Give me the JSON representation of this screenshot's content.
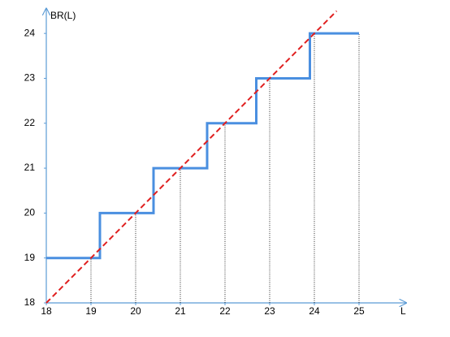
{
  "chart_data": {
    "type": "line",
    "x_label": "L",
    "y_label": "BR(L)",
    "xlim": [
      18,
      26
    ],
    "ylim": [
      18,
      24.5
    ],
    "xticks": [
      18,
      19,
      20,
      21,
      22,
      23,
      24,
      25
    ],
    "yticks": [
      18,
      19,
      20,
      21,
      22,
      23,
      24
    ],
    "axis_color": "#5b9bd5",
    "series": [
      {
        "color": "#4a8fe0",
        "style": "solid",
        "x": [
          18,
          19.2,
          19.2,
          20.4,
          20.4,
          21.6,
          21.6,
          22.7,
          22.7,
          23.9,
          23.9,
          25
        ],
        "values": [
          19,
          19,
          20,
          20,
          21,
          21,
          22,
          22,
          23,
          23,
          24,
          24
        ]
      },
      {
        "color": "#e02020",
        "style": "dashed",
        "x": [
          18,
          24.5
        ],
        "values": [
          18,
          24.5
        ]
      }
    ],
    "drop_lines": true
  }
}
